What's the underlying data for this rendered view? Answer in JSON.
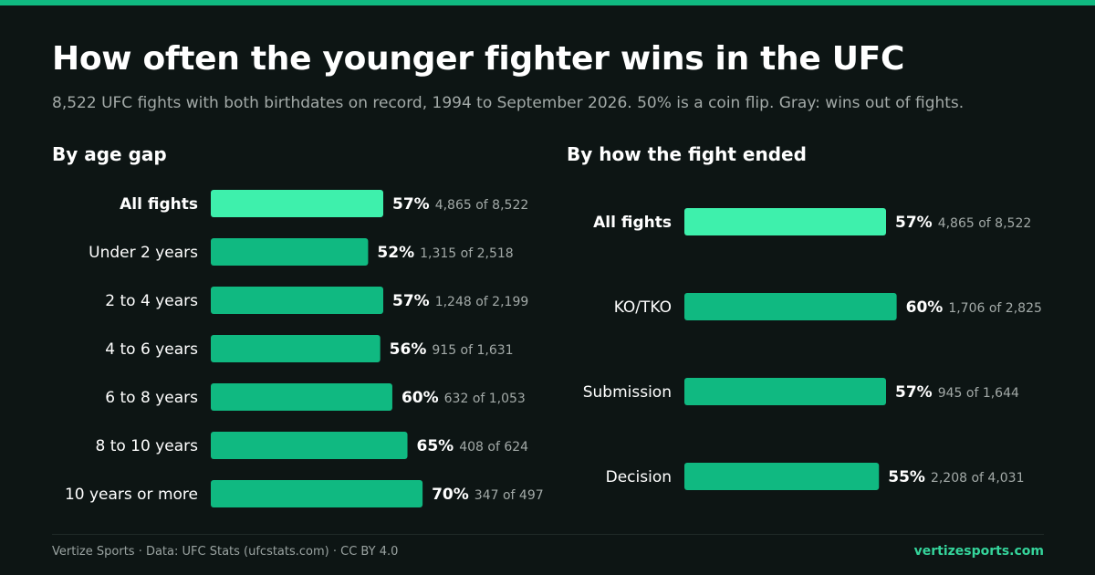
{
  "header": {
    "title": "How often the younger fighter wins in the UFC",
    "subtitle": "8,522 UFC fights with both birthdates on record, 1994 to September 2026. 50% is a coin flip. Gray: wins out of fights."
  },
  "colors": {
    "background": "#0d1514",
    "accent": "#10b981",
    "highlight": "#3ef0ac",
    "muted_text": "#a3aaa8"
  },
  "chart_data": [
    {
      "type": "bar",
      "orientation": "horizontal",
      "title": "By age gap",
      "categories": [
        "All fights",
        "Under 2 years",
        "2 to 4 years",
        "4 to 6 years",
        "6 to 8 years",
        "8 to 10 years",
        "10 years or more"
      ],
      "values": [
        57,
        52,
        57,
        56,
        60,
        65,
        70
      ],
      "value_labels": [
        "57%",
        "52%",
        "57%",
        "56%",
        "60%",
        "65%",
        "70%"
      ],
      "wins": [
        4865,
        1315,
        1248,
        915,
        632,
        408,
        347
      ],
      "fights": [
        8522,
        2518,
        2199,
        1631,
        1053,
        624,
        497
      ],
      "count_labels": [
        "4,865 of 8,522",
        "1,315 of 2,518",
        "1,248 of 2,199",
        "915 of 1,631",
        "632 of 1,053",
        "408 of 624",
        "347 of 497"
      ],
      "highlighted": [
        "All fights"
      ],
      "units": "percent"
    },
    {
      "type": "bar",
      "orientation": "horizontal",
      "title": "By how the fight ended",
      "categories": [
        "All fights",
        "KO/TKO",
        "Submission",
        "Decision"
      ],
      "values": [
        57,
        60,
        57,
        55
      ],
      "value_labels": [
        "57%",
        "60%",
        "57%",
        "55%"
      ],
      "wins": [
        4865,
        1706,
        945,
        2208
      ],
      "fights": [
        8522,
        2825,
        1644,
        4031
      ],
      "count_labels": [
        "4,865 of 8,522",
        "1,706 of 2,825",
        "945 of 1,644",
        "2,208 of 4,031"
      ],
      "highlighted": [
        "All fights"
      ],
      "units": "percent"
    }
  ],
  "footer": {
    "credit": "Vertize Sports · Data: UFC Stats (ufcstats.com) · CC BY 4.0",
    "site": "vertizesports.com"
  }
}
